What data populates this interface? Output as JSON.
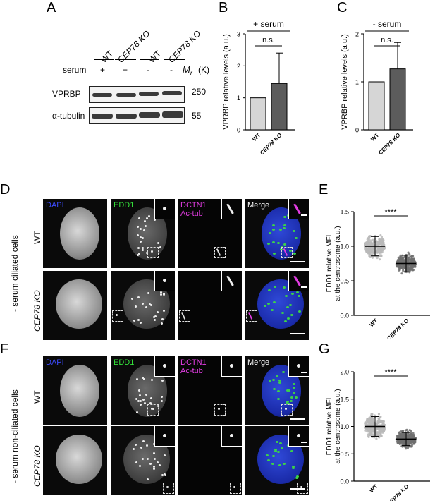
{
  "panels": {
    "A": "A",
    "B": "B",
    "C": "C",
    "D": "D",
    "E": "E",
    "F": "F",
    "G": "G"
  },
  "blot": {
    "lanes": [
      "WT",
      "CEP78 KO",
      "WT",
      "CEP78 KO"
    ],
    "serum_label": "serum",
    "serum_values": [
      "+",
      "+",
      "-",
      "-"
    ],
    "mr_label": "M",
    "mr_sub": "r",
    "mr_unit": "(K)",
    "rows": [
      {
        "name": "VPRBP",
        "mw": "250"
      },
      {
        "name": "α-tubulin",
        "mw": "55"
      }
    ]
  },
  "micro": {
    "D_group": "- serum ciliated cells",
    "F_group": "- serum non-ciliated cells",
    "row_wt": "WT",
    "row_ko": "CEP78 KO",
    "ch_dapi": "DAPI",
    "ch_edd1": "EDD1",
    "ch_dctn1": "DCTN1",
    "ch_actub": "Ac-tub",
    "ch_merge": "Merge"
  },
  "chart_data": [
    {
      "id": "B",
      "type": "bar",
      "title": "+ serum",
      "ylabel": "VPRBP relative levels (a.u.)",
      "categories": [
        "WT",
        "CEP78 KO"
      ],
      "values": [
        1.0,
        1.45
      ],
      "errors": [
        0,
        0.95
      ],
      "ylim": [
        0,
        3
      ],
      "yticks": [
        "0",
        "1",
        "2",
        "3"
      ],
      "annotation": "n.s."
    },
    {
      "id": "C",
      "type": "bar",
      "title": "- serum",
      "ylabel": "VPRBP relative levels (a.u.)",
      "categories": [
        "WT",
        "CEP78 KO"
      ],
      "values": [
        1.0,
        1.27
      ],
      "errors": [
        0,
        0.55
      ],
      "ylim": [
        0,
        2
      ],
      "yticks": [
        "0",
        "1",
        "2"
      ],
      "annotation": "n.s."
    },
    {
      "id": "E",
      "type": "scatter",
      "ylabel": "EDD1 relative MFI at the centrosome (a.u.)",
      "categories": [
        "WT",
        "CEP78 KO"
      ],
      "means": [
        1.0,
        0.75
      ],
      "sd": [
        0.14,
        0.12
      ],
      "ylim": [
        0,
        1.5
      ],
      "yticks": [
        "0.0",
        "0.5",
        "1.0",
        "1.5"
      ],
      "annotation": "****"
    },
    {
      "id": "G",
      "type": "scatter",
      "ylabel": "EDD1 relative MFI at the centrosome (a.u.)",
      "categories": [
        "WT",
        "CEP78 KO"
      ],
      "means": [
        1.0,
        0.77
      ],
      "sd": [
        0.18,
        0.12
      ],
      "ylim": [
        0,
        2.0
      ],
      "yticks": [
        "0.0",
        "0.5",
        "1.0",
        "1.5",
        "2.0"
      ],
      "annotation": "****"
    }
  ]
}
